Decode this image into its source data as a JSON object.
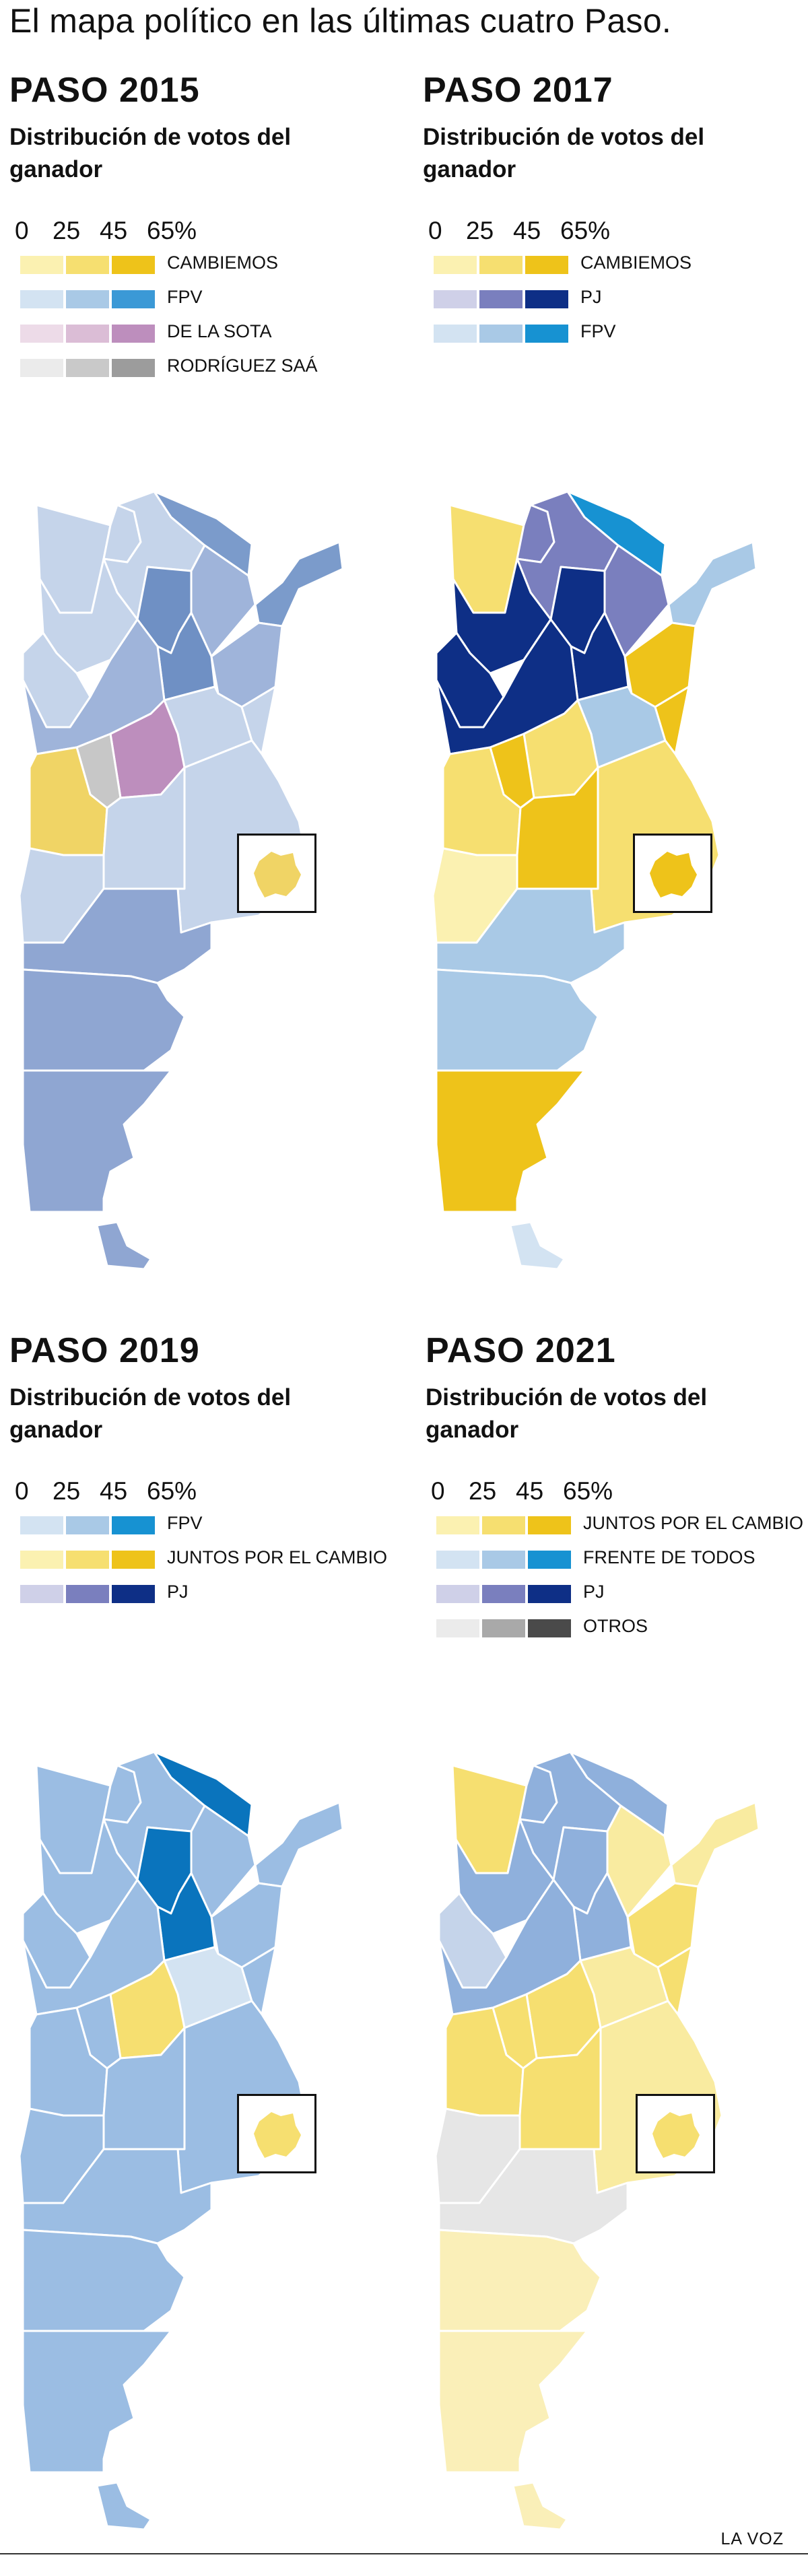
{
  "page": {
    "title": "El mapa político en las últimas cuatro Paso.",
    "credit": "LA VOZ"
  },
  "scale_ticks": [
    "0",
    "25",
    "45",
    "65%"
  ],
  "panels": [
    {
      "title": "PASO 2015",
      "subtitle": "Distribución de votos del ganador",
      "legend": [
        {
          "label": "CAMBIEMOS",
          "colors": [
            "#fbf1b1",
            "#f6df70",
            "#eec31a"
          ]
        },
        {
          "label": "FPV",
          "colors": [
            "#d3e3f2",
            "#a9c9e6",
            "#3b99d6"
          ]
        },
        {
          "label": "DE LA SOTA",
          "colors": [
            "#eddbe8",
            "#dbbdd6",
            "#bd8ebd"
          ]
        },
        {
          "label": "RODRÍGUEZ SAÁ",
          "colors": [
            "#ebebeb",
            "#c9c9c9",
            "#9c9c9c"
          ]
        }
      ],
      "inset_fill": "#f0d465",
      "fills": {
        "noa_w": "#c5d4ea",
        "jujuy": "#c5d4ea",
        "salta": "#c5d4ea",
        "formosa": "#7b9bcb",
        "chaco": "#9fb4da",
        "misiones": "#7b9bcb",
        "tucuman": "#6f90c4",
        "catamarca": "#c5d4ea",
        "santiago": "#6f90c4",
        "larioja": "#c5d4ea",
        "corrientes": "#9fb4da",
        "santafe": "#c5d4ea",
        "entrerios": "#c5d4ea",
        "sanjuan": "#9fb4da",
        "cordoba": "#bd8ebd",
        "sanluis": "#c7c7c7",
        "mendoza": "#f0d465",
        "lapampa": "#c5d4ea",
        "buenosaires": "#c5d4ea",
        "neuquen": "#c5d4ea",
        "rionegro": "#8fa6d2",
        "chubut": "#8fa6d2",
        "santacruz": "#8fa6d2",
        "tdf": "#8fa6d2"
      }
    },
    {
      "title": "PASO 2017",
      "subtitle": "Distribución de votos del ganador",
      "legend": [
        {
          "label": "CAMBIEMOS",
          "colors": [
            "#fbf1b1",
            "#f6df70",
            "#eec31a"
          ]
        },
        {
          "label": "PJ",
          "colors": [
            "#cfd0e8",
            "#7a7fbe",
            "#0e2f86"
          ]
        },
        {
          "label": "FPV",
          "colors": [
            "#d3e3f2",
            "#a9c9e6",
            "#1792d2"
          ]
        }
      ],
      "inset_fill": "#eec31a",
      "fills": {
        "noa_w": "#f6df70",
        "jujuy": "#7a7fbe",
        "salta": "#7a7fbe",
        "formosa": "#1792d2",
        "chaco": "#7a7fbe",
        "misiones": "#a9c9e6",
        "tucuman": "#0e2f86",
        "catamarca": "#0e2f86",
        "santiago": "#0e2f86",
        "larioja": "#0e2f86",
        "corrientes": "#eec31a",
        "santafe": "#a9c9e6",
        "entrerios": "#eec31a",
        "sanjuan": "#0e2f86",
        "cordoba": "#f6df70",
        "sanluis": "#eec31a",
        "mendoza": "#f6df70",
        "lapampa": "#eec31a",
        "buenosaires": "#f6df70",
        "neuquen": "#fbf1b1",
        "rionegro": "#a9c9e6",
        "chubut": "#a9c9e6",
        "santacruz": "#eec31a",
        "tdf": "#d3e3f2"
      }
    },
    {
      "title": "PASO 2019",
      "subtitle": "Distribución de votos del ganador",
      "legend": [
        {
          "label": "FPV",
          "colors": [
            "#d3e3f2",
            "#a9c9e6",
            "#1792d2"
          ]
        },
        {
          "label": "JUNTOS POR EL CAMBIO",
          "colors": [
            "#fbf1b1",
            "#f6df70",
            "#eec31a"
          ]
        },
        {
          "label": "PJ",
          "colors": [
            "#cfd0e8",
            "#7a7fbe",
            "#0e2f86"
          ]
        }
      ],
      "inset_fill": "#f6df70",
      "fills": {
        "noa_w": "#9bbde3",
        "jujuy": "#9bbde3",
        "salta": "#9bbde3",
        "formosa": "#0a74bd",
        "chaco": "#9bbde3",
        "misiones": "#9bbde3",
        "tucuman": "#0a74bd",
        "catamarca": "#9bbde3",
        "santiago": "#0a74bd",
        "larioja": "#9bbde3",
        "corrientes": "#9bbde3",
        "santafe": "#d3e3f2",
        "entrerios": "#9bbde3",
        "sanjuan": "#9bbde3",
        "cordoba": "#f6df70",
        "sanluis": "#9bbde3",
        "mendoza": "#9bbde3",
        "lapampa": "#9bbde3",
        "buenosaires": "#9bbde3",
        "neuquen": "#9bbde3",
        "rionegro": "#9bbde3",
        "chubut": "#9bbde3",
        "santacruz": "#9bbde3",
        "tdf": "#9bbde3"
      }
    },
    {
      "title": "PASO 2021",
      "subtitle": "Distribución de votos del ganador",
      "legend": [
        {
          "label": "JUNTOS POR EL CAMBIO",
          "colors": [
            "#fbf1b1",
            "#f6df70",
            "#eec31a"
          ]
        },
        {
          "label": "FRENTE DE TODOS",
          "colors": [
            "#d3e3f2",
            "#a9c9e6",
            "#1792d2"
          ]
        },
        {
          "label": "PJ",
          "colors": [
            "#cfd0e8",
            "#7a7fbe",
            "#0e2f86"
          ]
        },
        {
          "label": "OTROS",
          "colors": [
            "#ebebeb",
            "#a9a9a9",
            "#4a4a4a"
          ]
        }
      ],
      "inset_fill": "#f6df70",
      "fills": {
        "noa_w": "#f6df70",
        "jujuy": "#8fb0dc",
        "salta": "#8fb0dc",
        "formosa": "#8fb0dc",
        "chaco": "#f9eba0",
        "misiones": "#f9eba0",
        "tucuman": "#8fb0dc",
        "catamarca": "#8fb0dc",
        "santiago": "#8fb0dc",
        "larioja": "#c5d4ea",
        "corrientes": "#f6df70",
        "santafe": "#f9eba0",
        "entrerios": "#f6df70",
        "sanjuan": "#8fb0dc",
        "cordoba": "#f6df70",
        "sanluis": "#f6df70",
        "mendoza": "#f6df70",
        "lapampa": "#f6df70",
        "buenosaires": "#f9eba0",
        "neuquen": "#e6e6e6",
        "rionegro": "#e6e6e6",
        "chubut": "#faefb8",
        "santacruz": "#faefb8",
        "tdf": "#faefb8"
      }
    }
  ]
}
